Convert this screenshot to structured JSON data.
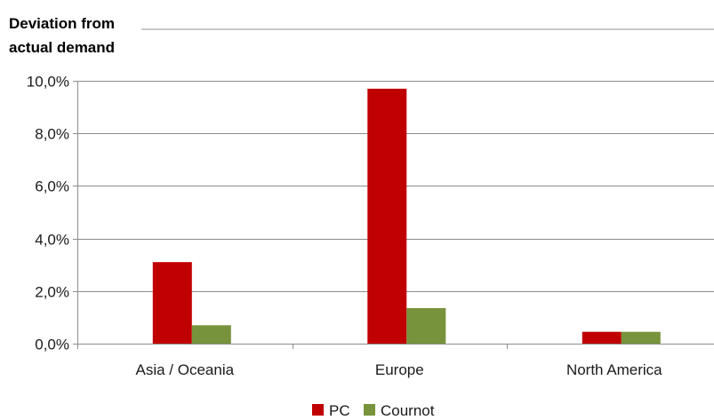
{
  "chart_data": {
    "type": "bar",
    "ylabel_lines": [
      "Deviation from",
      "actual demand"
    ],
    "categories": [
      "Asia / Oceania",
      "Europe",
      "North America"
    ],
    "series": [
      {
        "name": "PC",
        "color": "#c00000",
        "values": [
          3.1,
          9.7,
          0.45
        ]
      },
      {
        "name": "Cournot",
        "color": "#77933c",
        "values": [
          0.7,
          1.35,
          0.45
        ]
      }
    ],
    "ylim": [
      0,
      10
    ],
    "yticks": [
      {
        "value": 0,
        "label": "0,0%"
      },
      {
        "value": 2,
        "label": "2,0%"
      },
      {
        "value": 4,
        "label": "4,0%"
      },
      {
        "value": 6,
        "label": "6,0%"
      },
      {
        "value": 8,
        "label": "8,0%"
      },
      {
        "value": 10,
        "label": "10,0%"
      }
    ],
    "grid": true,
    "legend_position": "bottom-center"
  },
  "colors": {
    "gridline": "#8c8c8c",
    "axis": "#8c8c8c"
  }
}
